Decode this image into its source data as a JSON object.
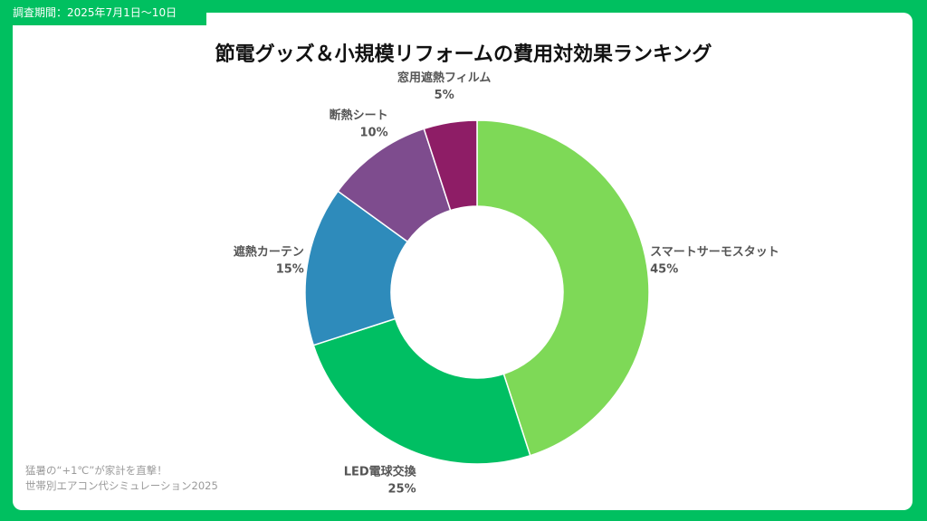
{
  "header": {
    "period": "調査期間：2025年7月1日〜10日"
  },
  "chart_data": {
    "type": "pie",
    "donut": true,
    "title": "節電グッズ＆小規模リフォームの費用対効果ランキング",
    "categories": [
      "スマートサーモスタット",
      "LED電球交換",
      "遮熱カーテン",
      "断熱シート",
      "窓用遮熱フィルム"
    ],
    "values": [
      45,
      25,
      15,
      10,
      5
    ],
    "value_labels": [
      "45%",
      "25%",
      "15%",
      "10%",
      "5%"
    ],
    "colors": [
      "#7ed957",
      "#00bf63",
      "#2e8bbb",
      "#7e4c8e",
      "#8e1d66"
    ],
    "legend": "none"
  },
  "footer": {
    "line1": "猛暑の“+1℃”が家計を直撃！",
    "line2": "世帯別エアコン代シミュレーション2025"
  }
}
